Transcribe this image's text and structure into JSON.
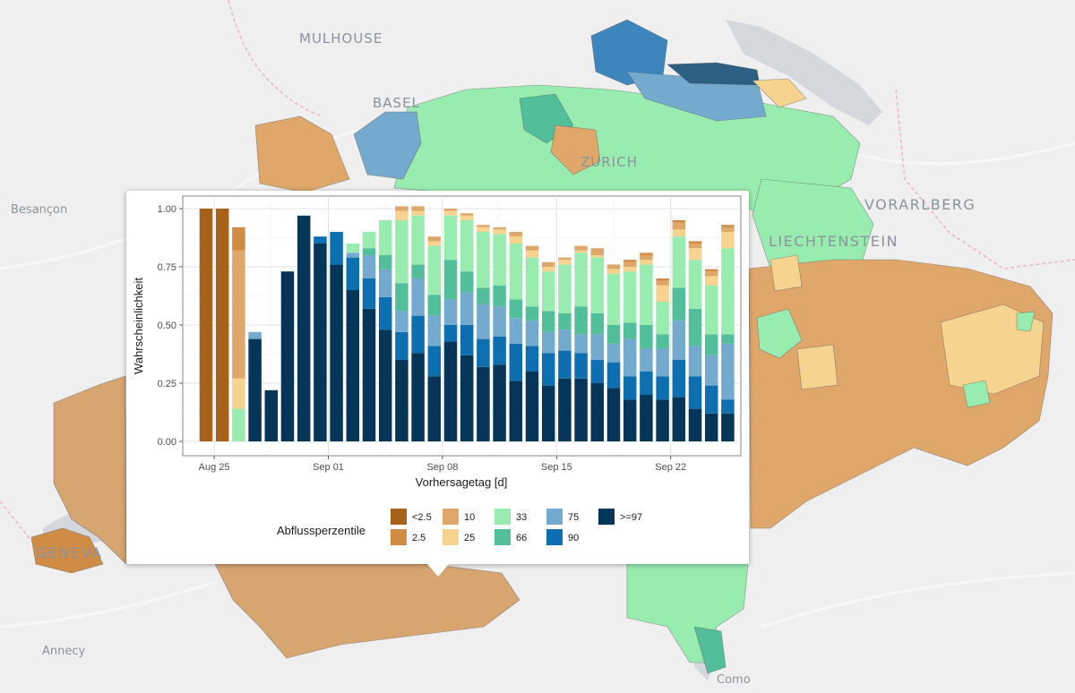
{
  "map": {
    "labels": [
      {
        "name": "label-mulhouse",
        "text": "MULHOUSE"
      },
      {
        "name": "label-basel",
        "text": "BASEL"
      },
      {
        "name": "label-zurich",
        "text": "ZURICH"
      },
      {
        "name": "label-besancon",
        "text": "Besançon"
      },
      {
        "name": "label-vorarlberg",
        "text": "VORARLBERG"
      },
      {
        "name": "label-liechtenstein",
        "text": "LIECHTENSTEIN"
      },
      {
        "name": "label-geneva",
        "text": "GENEVA"
      },
      {
        "name": "label-annecy",
        "text": "Annecy"
      },
      {
        "name": "label-como",
        "text": "Como"
      }
    ],
    "colors": {
      "background": "#efefef",
      "land": "#e9e9e9",
      "water": "#d4d7db",
      "border": "#e8b6c3"
    }
  },
  "legend_classes": [
    {
      "label": "<2.5",
      "color": "#a6611a"
    },
    {
      "label": "2.5",
      "color": "#d08c45"
    },
    {
      "label": "10",
      "color": "#dfa76a"
    },
    {
      "label": "25",
      "color": "#f6d38f"
    },
    {
      "label": "33",
      "color": "#99ecb0"
    },
    {
      "label": "66",
      "color": "#52bf9a"
    },
    {
      "label": "75",
      "color": "#75aacf"
    },
    {
      "label": "90",
      "color": "#0d6fb0"
    },
    {
      "label": ">=97",
      "color": "#053557"
    }
  ],
  "chart_data": {
    "type": "bar",
    "stacked": true,
    "title": "",
    "xlabel": "Vorhersagetag [d]",
    "ylabel": "Wahrscheinlichkeit",
    "ylim": [
      0,
      1
    ],
    "y_ticks": [
      "0.00",
      "0.25",
      "0.50",
      "0.75",
      "1.00"
    ],
    "x_tick_labels": [
      {
        "label": "Aug 25",
        "day_index": 0
      },
      {
        "label": "Sep 01",
        "day_index": 7
      },
      {
        "label": "Sep 08",
        "day_index": 14
      },
      {
        "label": "Sep 15",
        "day_index": 21
      },
      {
        "label": "Sep 22",
        "day_index": 28
      }
    ],
    "categories": [
      "Aug 24",
      "Aug 25",
      "Aug 26",
      "Aug 27",
      "Aug 28",
      "Aug 29",
      "Aug 30",
      "Aug 31",
      "Sep 01",
      "Sep 02",
      "Sep 03",
      "Sep 04",
      "Sep 05",
      "Sep 06",
      "Sep 07",
      "Sep 08",
      "Sep 09",
      "Sep 10",
      "Sep 11",
      "Sep 12",
      "Sep 13",
      "Sep 14",
      "Sep 15",
      "Sep 16",
      "Sep 17",
      "Sep 18",
      "Sep 19",
      "Sep 20",
      "Sep 21",
      "Sep 22",
      "Sep 23",
      "Sep 24",
      "Sep 25"
    ],
    "legend_title": "Abflussperzentile",
    "legend_position": "bottom",
    "grid": true,
    "series": [
      {
        "name": "<2.5",
        "values": [
          1,
          1,
          0,
          0,
          0,
          0,
          0,
          0,
          0,
          0,
          0,
          0,
          0,
          0,
          0,
          0,
          0,
          0,
          0,
          0,
          0,
          0,
          0,
          0,
          0,
          0,
          0,
          0,
          0,
          0,
          0,
          0,
          0
        ]
      },
      {
        "name": "2.5",
        "values": [
          0,
          0,
          0.1,
          0,
          0,
          0,
          0,
          0,
          0,
          0,
          0,
          0,
          0,
          0,
          0,
          0,
          0,
          0,
          0,
          0,
          0,
          0,
          0,
          0,
          0,
          0,
          0.01,
          0.01,
          0.01,
          0.01,
          0.01,
          0.01,
          0.01
        ]
      },
      {
        "name": "10",
        "values": [
          0,
          0,
          0.55,
          0,
          0,
          0,
          0,
          0,
          0,
          0,
          0,
          0,
          0.02,
          0.02,
          0.02,
          0.01,
          0.01,
          0.01,
          0.01,
          0.02,
          0.02,
          0.02,
          0.01,
          0.02,
          0.03,
          0.02,
          0.02,
          0.02,
          0.02,
          0.03,
          0.02,
          0.02,
          0.02
        ]
      },
      {
        "name": "25",
        "values": [
          0,
          0,
          0.13,
          0,
          0,
          0,
          0,
          0,
          0,
          0,
          0,
          0,
          0.04,
          0.02,
          0.02,
          0.02,
          0.02,
          0.02,
          0.02,
          0.03,
          0.03,
          0.02,
          0.02,
          0.01,
          0.01,
          0.02,
          0.02,
          0.02,
          0.07,
          0.03,
          0.05,
          0.04,
          0.07
        ]
      },
      {
        "name": "33",
        "values": [
          0,
          0,
          0.14,
          0,
          0,
          0,
          0,
          0,
          0,
          0.04,
          0.07,
          0.15,
          0.27,
          0.21,
          0.21,
          0.19,
          0.22,
          0.24,
          0.22,
          0.24,
          0.21,
          0.17,
          0.21,
          0.23,
          0.24,
          0.22,
          0.22,
          0.26,
          0.14,
          0.22,
          0.21,
          0.21,
          0.37
        ]
      },
      {
        "name": "66",
        "values": [
          0,
          0,
          0,
          0,
          0,
          0,
          0,
          0,
          0,
          0,
          0.03,
          0.06,
          0.12,
          0.06,
          0.09,
          0.17,
          0.09,
          0.07,
          0.09,
          0.08,
          0.06,
          0.09,
          0.07,
          0.12,
          0.09,
          0.08,
          0.07,
          0.1,
          0.06,
          0.14,
          0.16,
          0.09,
          0.04
        ]
      },
      {
        "name": "75",
        "values": [
          0,
          0,
          0,
          0.03,
          0,
          0,
          0,
          0,
          0,
          0.02,
          0.1,
          0.12,
          0.09,
          0.16,
          0.13,
          0.11,
          0.14,
          0.15,
          0.13,
          0.11,
          0.11,
          0.09,
          0.09,
          0.08,
          0.11,
          0.08,
          0.16,
          0.1,
          0.12,
          0.17,
          0.13,
          0.13,
          0.24
        ]
      },
      {
        "name": "90",
        "values": [
          0,
          0,
          0,
          0,
          0,
          0,
          0,
          0.03,
          0.14,
          0.14,
          0.13,
          0.14,
          0.12,
          0.16,
          0.13,
          0.07,
          0.13,
          0.12,
          0.12,
          0.16,
          0.11,
          0.14,
          0.12,
          0.11,
          0.1,
          0.11,
          0.1,
          0.1,
          0.1,
          0.16,
          0.14,
          0.12,
          0.06
        ]
      },
      {
        "name": ">=97",
        "values": [
          0,
          0,
          0,
          0.44,
          0.22,
          0.73,
          0.97,
          0.85,
          0.76,
          0.65,
          0.57,
          0.48,
          0.35,
          0.38,
          0.28,
          0.43,
          0.37,
          0.32,
          0.33,
          0.26,
          0.3,
          0.24,
          0.27,
          0.27,
          0.25,
          0.23,
          0.18,
          0.2,
          0.18,
          0.19,
          0.14,
          0.12,
          0.12
        ]
      }
    ]
  }
}
